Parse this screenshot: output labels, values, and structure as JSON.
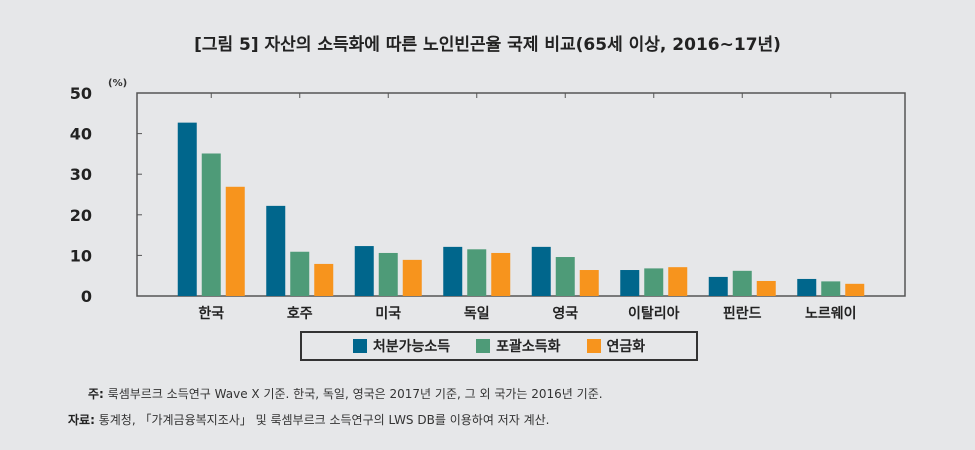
{
  "chart_data": {
    "type": "bar",
    "title": "[그림 5] 자산의 소득화에 따른 노인빈곤율 국제 비교(65세 이상, 2016~17년)",
    "ylabel": "(%)",
    "ylim": [
      0,
      50
    ],
    "yticks": [
      0,
      10,
      20,
      30,
      40,
      50
    ],
    "grid": false,
    "legend": "bottom",
    "categories": [
      "한국",
      "호주",
      "미국",
      "독일",
      "영국",
      "이탈리아",
      "핀란드",
      "노르웨이"
    ],
    "series": [
      {
        "name": "처분가능소득",
        "color": "#00668c",
        "values": [
          42.7,
          22.2,
          12.3,
          12.1,
          12.1,
          6.4,
          4.7,
          4.2
        ]
      },
      {
        "name": "포괄소득화",
        "color": "#4e9b78",
        "values": [
          35.1,
          10.9,
          10.6,
          11.5,
          9.6,
          6.8,
          6.2,
          3.6
        ]
      },
      {
        "name": "연금화",
        "color": "#f7941d",
        "values": [
          26.9,
          7.9,
          8.9,
          10.6,
          6.4,
          7.1,
          3.7,
          3.0
        ]
      }
    ]
  },
  "notes": {
    "note_label": "주:",
    "note_text": "룩셈부르크 소득연구 Wave X 기준. 한국, 독일, 영국은 2017년 기준, 그 외 국가는 2016년 기준.",
    "source_label": "자료:",
    "source_text": "통계청, 「가계금융복지조사」 및 룩셈부르크 소득연구의 LWS DB를 이용하여 저자 계산."
  }
}
